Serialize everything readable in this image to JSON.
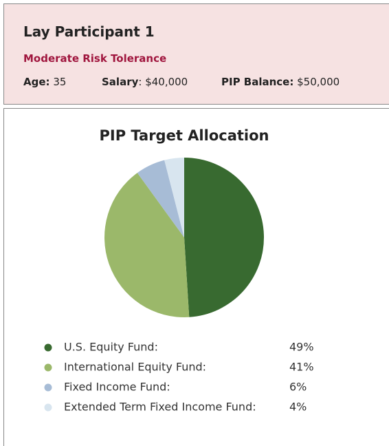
{
  "header": {
    "title": "Lay Participant 1",
    "subtitle": "Moderate Risk Tolerance",
    "fields": [
      {
        "label": "Age:",
        "value": "35"
      },
      {
        "label": "Salary",
        "value": ": $40,000"
      },
      {
        "label": "PIP Balance:",
        "value": "$50,000"
      }
    ]
  },
  "chart_data": {
    "type": "pie",
    "title": "PIP Target Allocation",
    "categories": [
      "U.S. Equity Fund:",
      "International Equity Fund:",
      "Fixed Income Fund:",
      "Extended Term Fixed Income Fund:"
    ],
    "values": [
      49,
      41,
      6,
      4
    ],
    "value_labels": [
      "49%",
      "41%",
      "6%",
      "4%"
    ],
    "colors": [
      "#386a30",
      "#9bb86a",
      "#a7bcd6",
      "#d8e5ef"
    ]
  }
}
